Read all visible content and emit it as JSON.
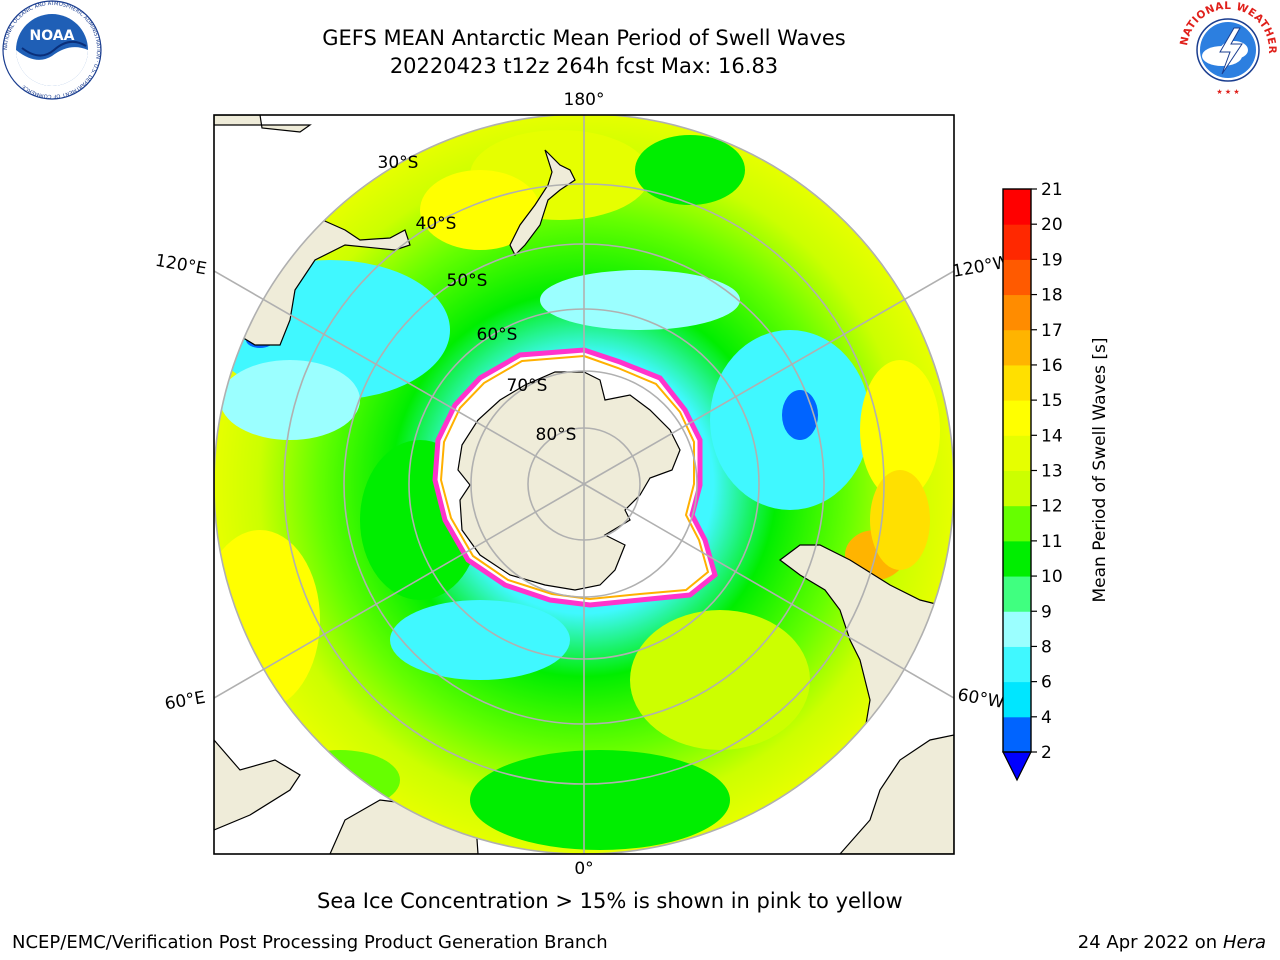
{
  "title": {
    "line1": "GEFS MEAN Antarctic Mean Period of Swell Waves",
    "line2": "20220423 t12z 264h fcst   Max: 16.83"
  },
  "logos": {
    "left": "NOAA",
    "left_ring_text": "NATIONAL OCEANIC AND ATMOSPHERIC ADMINISTRATION · U.S. DEPARTMENT OF COMMERCE",
    "right_ring_text": "NATIONAL WEATHER SERVICE"
  },
  "map": {
    "longitude_labels": {
      "top": "180°",
      "bottom": "0°",
      "upper_left": "120°E",
      "upper_right": "120°W",
      "lower_left": "60°E",
      "lower_right": "60°W"
    },
    "latitude_labels": [
      "30°S",
      "40°S",
      "50°S",
      "60°S",
      "70°S",
      "80°S"
    ],
    "colors": {
      "land": "#efecd9",
      "ice_edge": "#ff33cc",
      "ice_edge_inner": "#ffb000",
      "grid": "#b0b0b0"
    }
  },
  "colorbar": {
    "label": "Mean Period of Swell Waves [s]",
    "ticks": [
      "2",
      "4",
      "6",
      "8",
      "9",
      "10",
      "11",
      "12",
      "13",
      "14",
      "15",
      "16",
      "17",
      "18",
      "19",
      "20",
      "21"
    ],
    "colors": [
      "#0064ff",
      "#00e6ff",
      "#40f8ff",
      "#9bffff",
      "#40ff80",
      "#00ee00",
      "#66ff00",
      "#ccff00",
      "#e6ff00",
      "#ffff00",
      "#ffe000",
      "#ffb400",
      "#ff8c00",
      "#ff5a00",
      "#ff2800",
      "#ff0000"
    ],
    "under_color": "#0000ff"
  },
  "caption": "Sea Ice Concentration > 15% is shown in pink to yellow",
  "footer": {
    "left": "NCEP/EMC/Verification Post Processing Product Generation Branch",
    "right_date": "24 Apr 2022 on ",
    "right_host": "Hera"
  }
}
